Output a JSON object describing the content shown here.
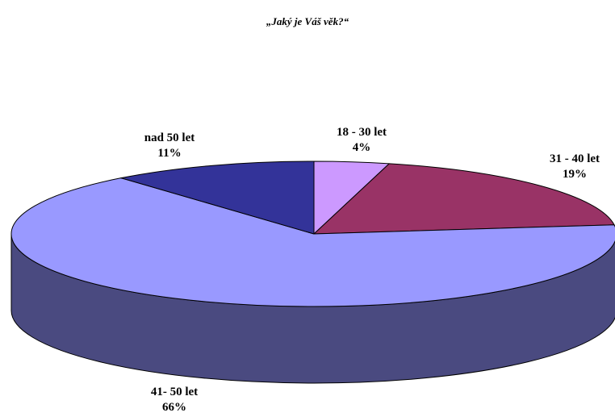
{
  "chart_data": {
    "type": "pie",
    "title": "„Jaký je Váš věk?“",
    "categories": [
      "18 - 30 let",
      "31 - 40 let",
      "41- 50 let",
      "nad 50 let"
    ],
    "values": [
      4,
      19,
      66,
      11
    ],
    "value_labels": [
      "4%",
      "19%",
      "66%",
      "11%"
    ],
    "colors": [
      "#cc99ff",
      "#993366",
      "#9999ff",
      "#333399"
    ],
    "side_colors": [
      "#7a5c99",
      "#5c1f3d",
      "#4a4a80",
      "#1f1f5c"
    ],
    "three_d": true,
    "legend": "none"
  }
}
